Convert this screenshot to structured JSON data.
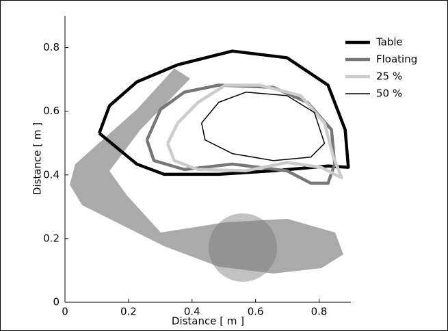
{
  "chart_data": {
    "type": "line",
    "xlabel": "Distance [ m ]",
    "ylabel": "Distance [ m ]",
    "xlim": [
      0,
      0.9
    ],
    "ylim": [
      0,
      0.9
    ],
    "xticks": [
      0,
      0.2,
      0.4,
      0.6,
      0.8
    ],
    "yticks": [
      0,
      0.2,
      0.4,
      0.6,
      0.8
    ],
    "legend": "upper right",
    "series": [
      {
        "name": "Table",
        "color": "#000000",
        "width": 4.5,
        "x": [
          0.108,
          0.14,
          0.226,
          0.355,
          0.527,
          0.699,
          0.828,
          0.882,
          0.892,
          0.828,
          0.656,
          0.484,
          0.312,
          0.226,
          0.108
        ],
        "values": [
          0.531,
          0.617,
          0.692,
          0.746,
          0.789,
          0.768,
          0.682,
          0.542,
          0.424,
          0.428,
          0.413,
          0.402,
          0.402,
          0.434,
          0.531
        ]
      },
      {
        "name": "Floating",
        "color": "#777777",
        "width": 4.5,
        "x": [
          0.258,
          0.301,
          0.376,
          0.484,
          0.656,
          0.763,
          0.839,
          0.849,
          0.828,
          0.774,
          0.699,
          0.527,
          0.376,
          0.28,
          0.258
        ],
        "values": [
          0.51,
          0.606,
          0.66,
          0.682,
          0.675,
          0.628,
          0.542,
          0.434,
          0.374,
          0.374,
          0.413,
          0.434,
          0.417,
          0.445,
          0.51
        ]
      },
      {
        "name": "25 %",
        "color": "#cccccc",
        "width": 4.5,
        "x": [
          0.323,
          0.355,
          0.419,
          0.505,
          0.613,
          0.742,
          0.817,
          0.845,
          0.871,
          0.806,
          0.699,
          0.57,
          0.419,
          0.344,
          0.323
        ],
        "values": [
          0.499,
          0.563,
          0.628,
          0.682,
          0.682,
          0.649,
          0.563,
          0.456,
          0.391,
          0.424,
          0.439,
          0.413,
          0.417,
          0.445,
          0.499
        ]
      },
      {
        "name": "50 %",
        "color": "#000000",
        "width": 1.5,
        "x": [
          0.43,
          0.484,
          0.57,
          0.699,
          0.785,
          0.817,
          0.774,
          0.656,
          0.527,
          0.441,
          0.43
        ],
        "values": [
          0.563,
          0.628,
          0.66,
          0.649,
          0.596,
          0.499,
          0.456,
          0.445,
          0.467,
          0.51,
          0.563
        ]
      }
    ]
  }
}
